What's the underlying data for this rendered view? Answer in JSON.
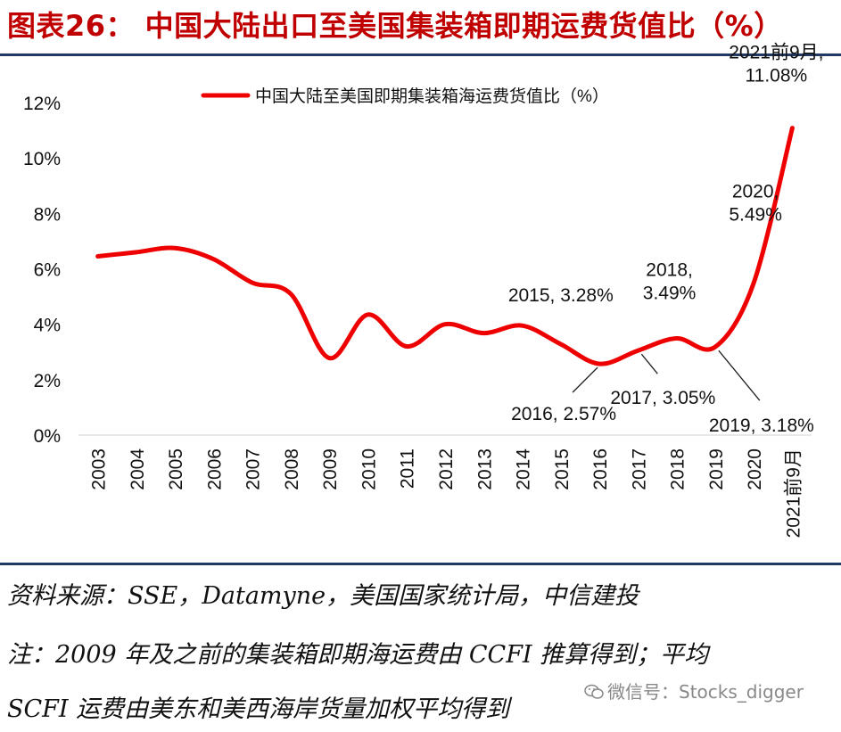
{
  "figure": {
    "title": "图表26：  中国大陆出口至美国集装箱即期运费货值比（%）",
    "source": "资料来源：SSE，Datamyne，美国国家统计局，中信建投",
    "note_line1": "注：2009 年及之前的集装箱即期海运费由 CCFI 推算得到；平均",
    "note_line2": "SCFI 运费由美东和美西海岸货量加权平均得到",
    "watermark": "微信号：Stocks_digger"
  },
  "colors": {
    "line": "#ee0000",
    "rule": "#1f3864",
    "title": "#c00000"
  },
  "chart_data": {
    "type": "line",
    "title": "",
    "xlabel": "",
    "ylabel": "",
    "categories": [
      "2003",
      "2004",
      "2005",
      "2006",
      "2007",
      "2008",
      "2009",
      "2010",
      "2011",
      "2012",
      "2013",
      "2014",
      "2015",
      "2016",
      "2017",
      "2018",
      "2019",
      "2020",
      "2021前9月"
    ],
    "series": [
      {
        "name": "中国大陆至美国即期集装箱海运费货值比（%）",
        "values": [
          6.45,
          6.6,
          6.75,
          6.35,
          5.5,
          5.1,
          2.78,
          4.35,
          3.2,
          4.0,
          3.68,
          3.95,
          3.28,
          2.57,
          3.05,
          3.49,
          3.18,
          5.49,
          11.08
        ]
      }
    ],
    "ylim": [
      0,
      12
    ],
    "yticks": [
      0,
      2,
      4,
      6,
      8,
      10,
      12
    ],
    "ytick_labels": [
      "0%",
      "2%",
      "4%",
      "6%",
      "8%",
      "10%",
      "12%"
    ],
    "grid": false,
    "legend": "top-center",
    "annotations": [
      {
        "index": 12,
        "line1": "2015, 3.28%",
        "line2": ""
      },
      {
        "index": 13,
        "line1": "2016, 2.57%",
        "line2": ""
      },
      {
        "index": 14,
        "line1": "2017, 3.05%",
        "line2": ""
      },
      {
        "index": 15,
        "line1": "2018,",
        "line2": "3.49%"
      },
      {
        "index": 16,
        "line1": "2019, 3.18%",
        "line2": ""
      },
      {
        "index": 17,
        "line1": "2020,",
        "line2": "5.49%"
      },
      {
        "index": 18,
        "line1": "2021前9月,",
        "line2": "11.08%"
      }
    ]
  }
}
